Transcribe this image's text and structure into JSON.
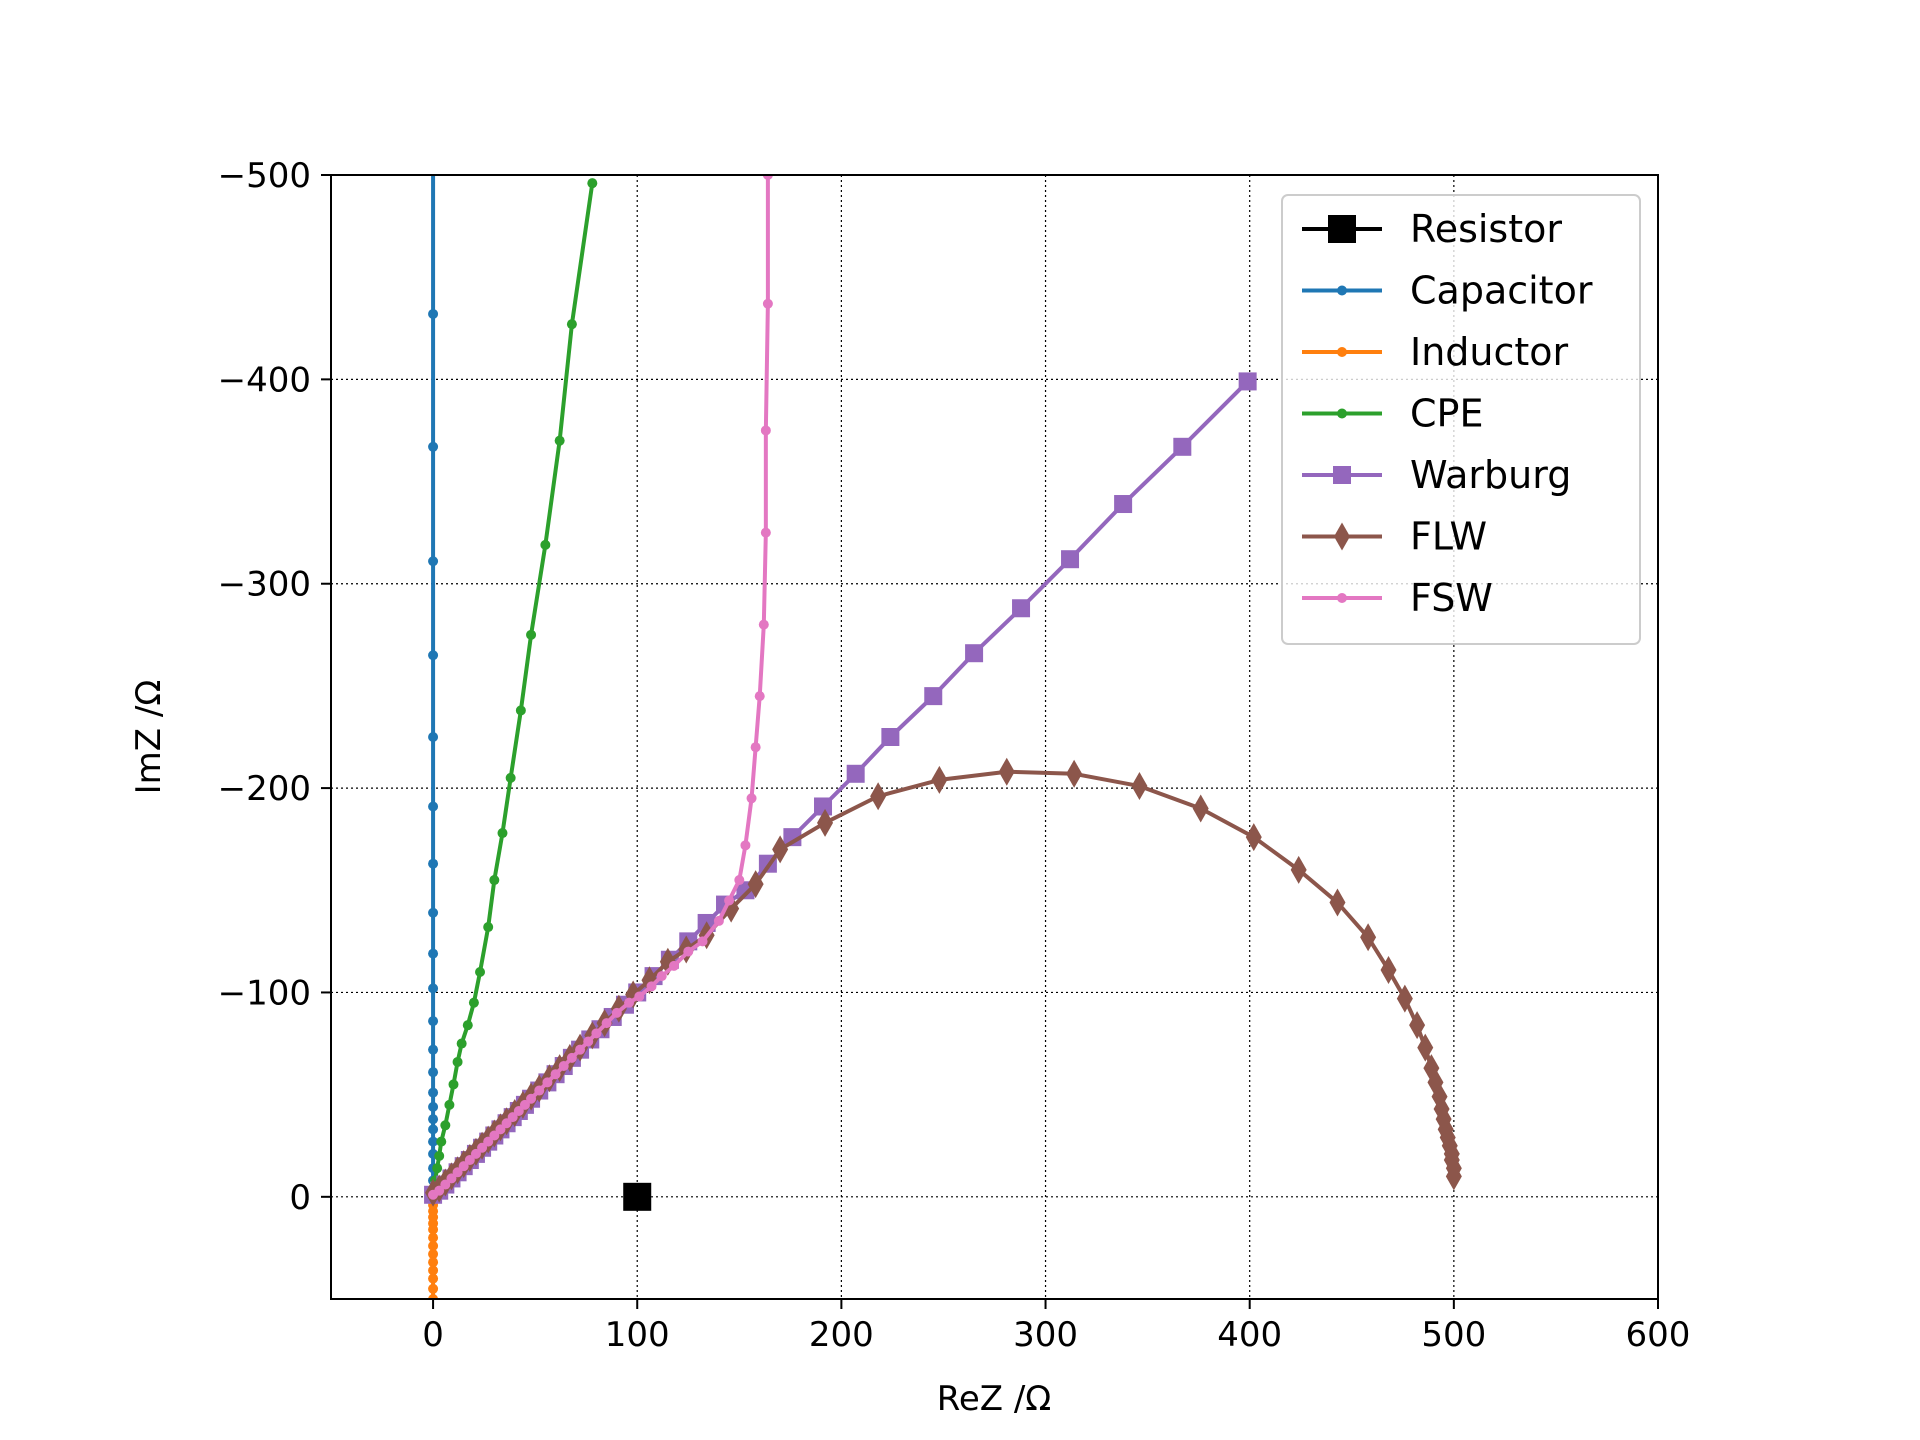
{
  "chart_data": {
    "type": "line",
    "xlabel": "ReZ /Ω",
    "ylabel": "ImZ /Ω",
    "xlim": [
      -50,
      600
    ],
    "ylim_display": [
      50,
      -500
    ],
    "y_axis_inverted": true,
    "grid": true,
    "grid_style": "dotted",
    "legend_position": "top-right",
    "xticks": [
      {
        "value": 0,
        "label": "0"
      },
      {
        "value": 100,
        "label": "100"
      },
      {
        "value": 200,
        "label": "200"
      },
      {
        "value": 300,
        "label": "300"
      },
      {
        "value": 400,
        "label": "400"
      },
      {
        "value": 500,
        "label": "500"
      },
      {
        "value": 600,
        "label": "600"
      }
    ],
    "yticks": [
      {
        "value": 0,
        "label": "0"
      },
      {
        "value": -100,
        "label": "−100"
      },
      {
        "value": -200,
        "label": "−200"
      },
      {
        "value": -300,
        "label": "−300"
      },
      {
        "value": -400,
        "label": "−400"
      },
      {
        "value": -500,
        "label": "−500"
      }
    ],
    "series": [
      {
        "name": "Resistor",
        "color": "#000000",
        "marker": "square-large",
        "x": [
          100
        ],
        "y": [
          0
        ]
      },
      {
        "name": "Capacitor",
        "color": "#1f77b4",
        "marker": "dot",
        "line_to_edge": true,
        "x": [
          0,
          0,
          0,
          0,
          0,
          0,
          0,
          0,
          0,
          0,
          0,
          0,
          0,
          0,
          0,
          0,
          0,
          0,
          0,
          0,
          0,
          0,
          0,
          0,
          0,
          0,
          0,
          0
        ],
        "y": [
          -3,
          -8,
          -14,
          -21,
          -27,
          -33,
          -38,
          -44,
          -51,
          -61,
          -72,
          -86,
          -102,
          -119,
          -139,
          -163,
          -191,
          -225,
          -265,
          -311,
          -367,
          -432,
          -510,
          -600,
          -700,
          -850,
          -1000,
          -1200
        ]
      },
      {
        "name": "Inductor",
        "color": "#ff7f0e",
        "marker": "dot",
        "x": [
          0,
          0,
          0,
          0,
          0,
          0,
          0,
          0,
          0,
          0,
          0,
          0,
          0,
          0
        ],
        "y": [
          1,
          4,
          7,
          10,
          13,
          16,
          20,
          24,
          28,
          32,
          36,
          40,
          45,
          50
        ]
      },
      {
        "name": "CPE",
        "color": "#2ca02c",
        "marker": "dot",
        "x": [
          1,
          2,
          3,
          4,
          6,
          8,
          10,
          12,
          14,
          17,
          20,
          23,
          27,
          30,
          34,
          38,
          43,
          48,
          55,
          62,
          68,
          78
        ],
        "y": [
          -8,
          -14,
          -20,
          -27,
          -35,
          -45,
          -55,
          -66,
          -75,
          -84,
          -95,
          -110,
          -132,
          -155,
          -178,
          -205,
          -238,
          -275,
          -319,
          -370,
          -427,
          -496
        ]
      },
      {
        "name": "Warburg",
        "color": "#9467bd",
        "marker": "square",
        "x": [
          0,
          3,
          6,
          9,
          12,
          15,
          18,
          21,
          24,
          27,
          30,
          33,
          36,
          39,
          42,
          45,
          48,
          52,
          56,
          60,
          64,
          68,
          72,
          77,
          82,
          88,
          94,
          100,
          108,
          116,
          125,
          134,
          143,
          153,
          164,
          176,
          191,
          207,
          224,
          245,
          265,
          288,
          312,
          338,
          367,
          399
        ],
        "y": [
          -1,
          -3,
          -6,
          -9,
          -12,
          -15,
          -18,
          -21,
          -24,
          -27,
          -30,
          -33,
          -36,
          -39,
          -42,
          -45,
          -48,
          -52,
          -56,
          -60,
          -64,
          -68,
          -72,
          -77,
          -82,
          -88,
          -94,
          -100,
          -108,
          -116,
          -125,
          -134,
          -143,
          -150,
          -163,
          -176,
          -191,
          -207,
          -225,
          -245,
          -266,
          -288,
          -312,
          -339,
          -367,
          -399
        ]
      },
      {
        "name": "FLW",
        "color": "#8c564b",
        "marker": "diamond",
        "x": [
          0,
          3,
          6,
          9,
          12,
          15,
          18,
          21,
          24,
          27,
          30,
          33,
          36,
          40,
          44,
          48,
          52,
          57,
          62,
          67,
          72,
          78,
          84,
          91,
          98,
          106,
          115,
          124,
          134,
          146,
          158,
          170,
          192,
          218,
          248,
          281,
          314,
          346,
          376,
          402,
          424,
          443,
          458,
          468,
          476,
          482,
          486,
          489,
          491,
          493,
          494,
          495,
          496,
          497,
          498,
          499,
          499,
          500,
          500
        ],
        "y": [
          -2,
          -4,
          -7,
          -10,
          -13,
          -16,
          -19,
          -22,
          -25,
          -28,
          -31,
          -34,
          -37,
          -41,
          -45,
          -49,
          -53,
          -58,
          -63,
          -68,
          -73,
          -79,
          -85,
          -92,
          -99,
          -106,
          -115,
          -121,
          -128,
          -141,
          -153,
          -170,
          -183,
          -196,
          -204,
          -208,
          -207,
          -201,
          -190,
          -176,
          -160,
          -144,
          -127,
          -111,
          -97,
          -84,
          -73,
          -63,
          -56,
          -49,
          -43,
          -38,
          -33,
          -29,
          -25,
          -21,
          -18,
          -14,
          -10
        ]
      },
      {
        "name": "FSW",
        "color": "#e377c2",
        "marker": "dot",
        "line_to_edge": true,
        "x": [
          0,
          3,
          6,
          9,
          12,
          15,
          18,
          21,
          24,
          27,
          30,
          33,
          36,
          39,
          42,
          45,
          48,
          52,
          56,
          60,
          64,
          68,
          72,
          76,
          80,
          85,
          90,
          96,
          101,
          107,
          112,
          118,
          125,
          132,
          140,
          145,
          150,
          153,
          156,
          158,
          160,
          162,
          163,
          163,
          164,
          164,
          165,
          165,
          166
        ],
        "y": [
          -1,
          -3,
          -6,
          -9,
          -12,
          -15,
          -18,
          -21,
          -24,
          -27,
          -30,
          -33,
          -36,
          -39,
          -42,
          -45,
          -48,
          -52,
          -56,
          -60,
          -64,
          -68,
          -72,
          -76,
          -80,
          -85,
          -90,
          -95,
          -98,
          -103,
          -108,
          -113,
          -120,
          -125,
          -135,
          -145,
          -155,
          -172,
          -195,
          -220,
          -245,
          -280,
          -325,
          -375,
          -437,
          -500,
          -600,
          -700,
          -800
        ]
      }
    ]
  }
}
